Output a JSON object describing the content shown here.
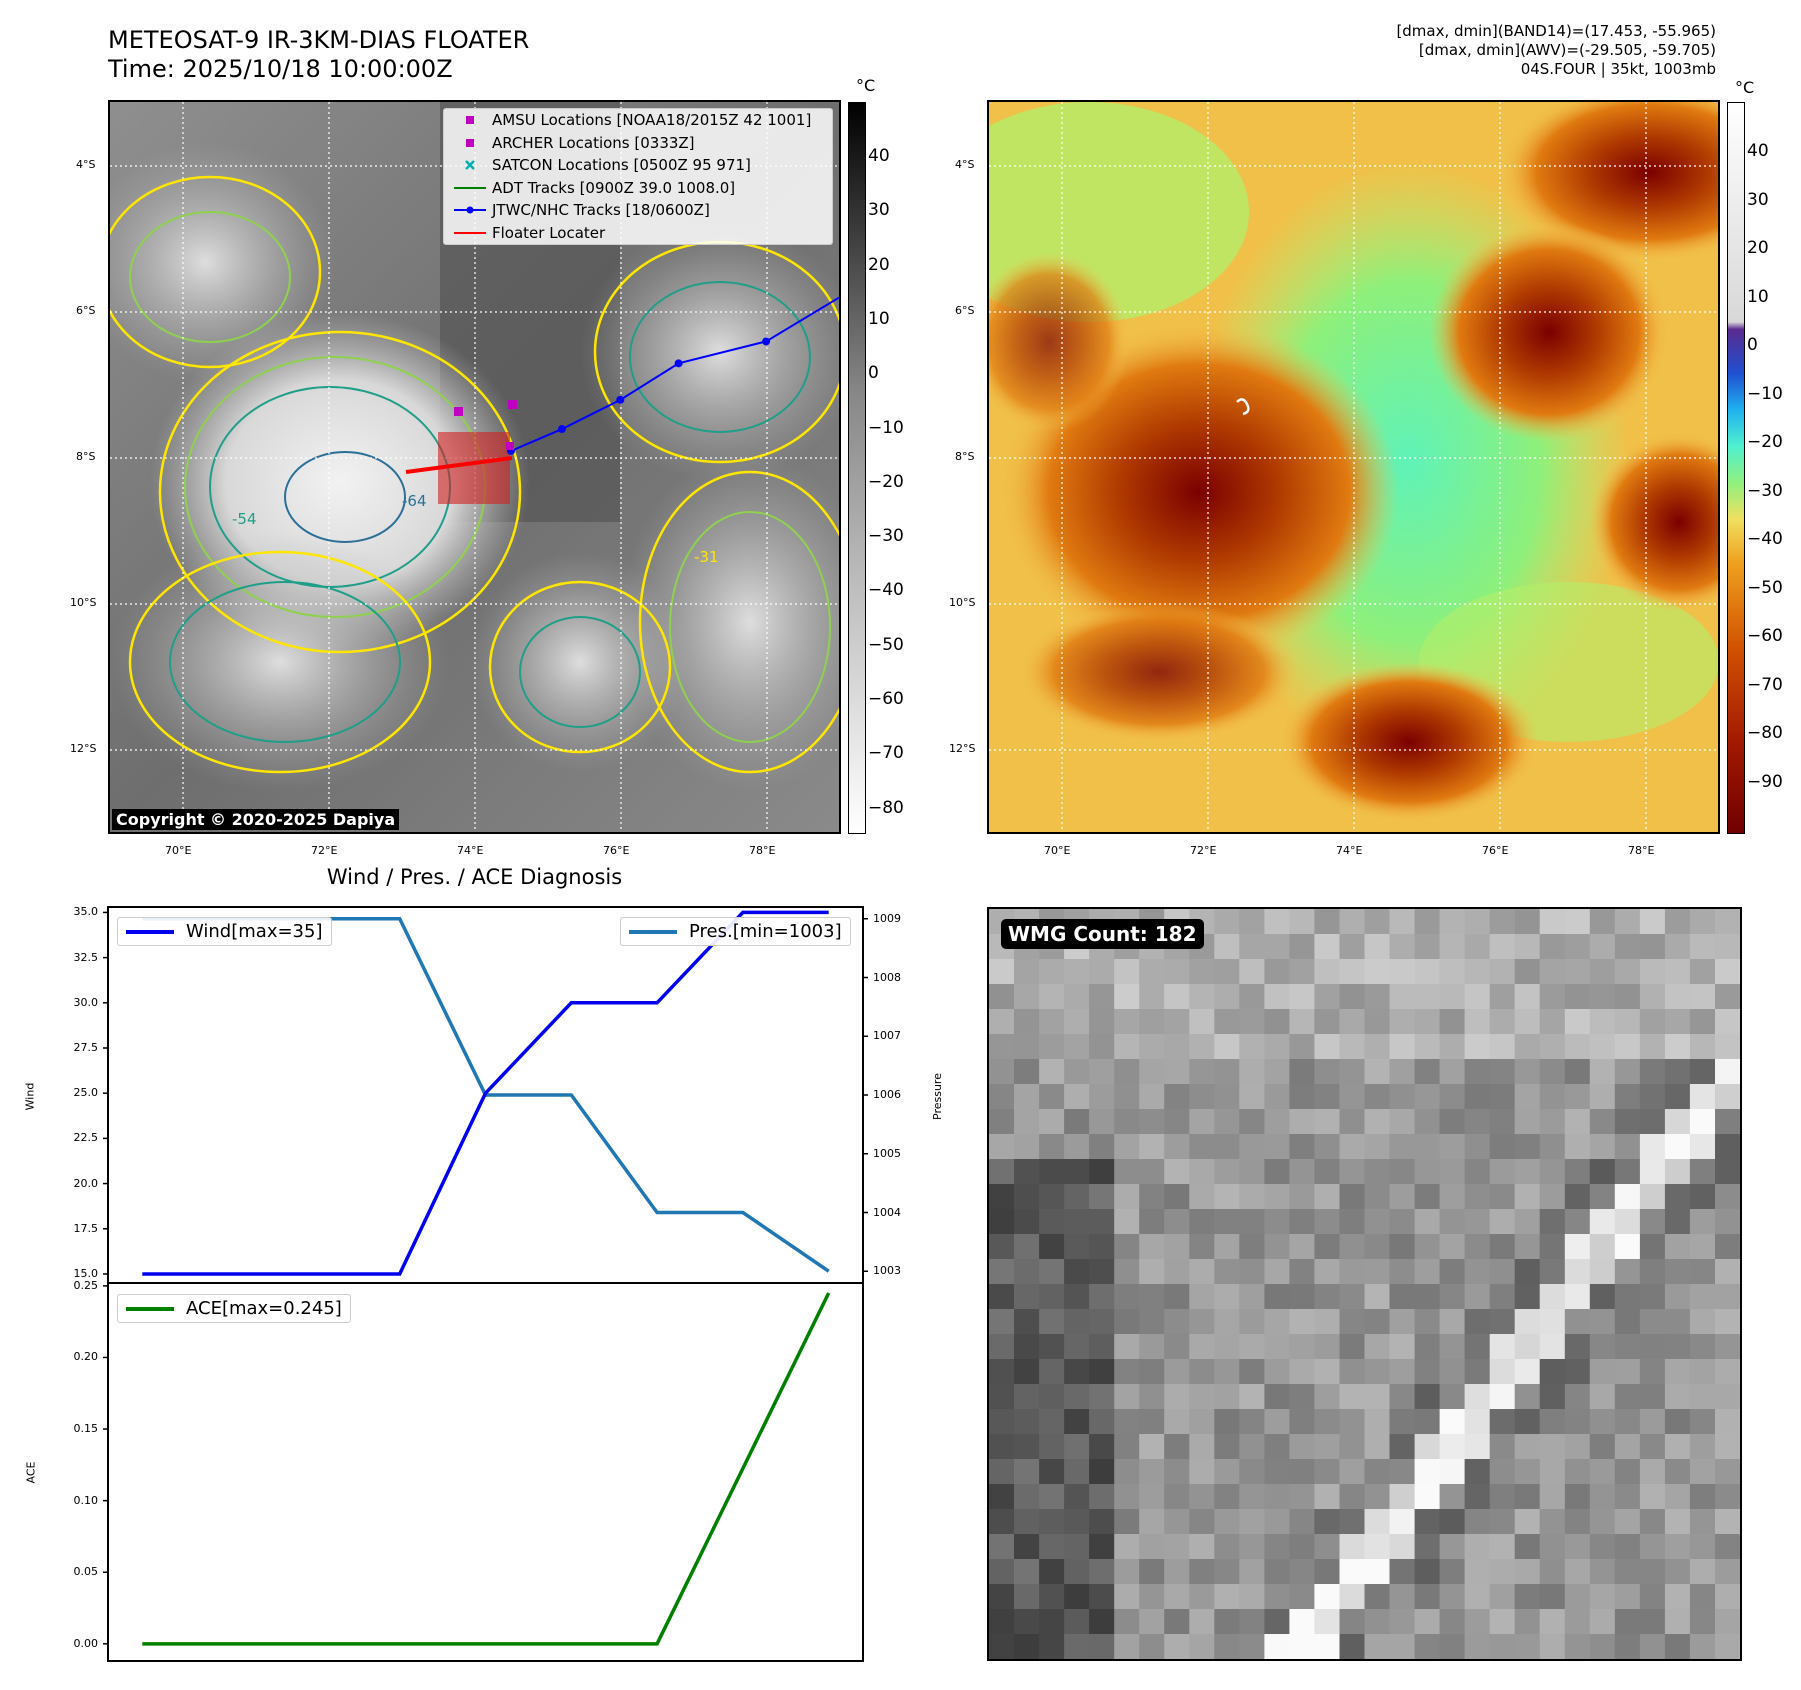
{
  "header": {
    "title_line1": "METEOSAT-9 IR-3KM-DIAS FLOATER",
    "title_line2": "Time: 2025/10/18 10:00:00Z",
    "stats_line1": "[dmax, dmin](BAND14)=(17.453, -55.965)",
    "stats_line2": "[dmax, dmin](AWV)=(-29.505, -59.705)",
    "stats_line3": "04S.FOUR | 35kt, 1003mb"
  },
  "ir_panel": {
    "lat_ticks": [
      "4°S",
      "6°S",
      "8°S",
      "10°S",
      "12°S"
    ],
    "lon_ticks": [
      "70°E",
      "72°E",
      "74°E",
      "76°E",
      "78°E"
    ],
    "colorbar_unit": "°C",
    "colorbar_ticks": [
      "40",
      "30",
      "20",
      "10",
      "0",
      "−10",
      "−20",
      "−30",
      "−40",
      "−50",
      "−60",
      "−70",
      "−80"
    ],
    "contour_labels": [
      "-31",
      "-54",
      "-64"
    ],
    "copyright": "Copyright © 2020-2025 Dapiya",
    "legend": [
      {
        "label": "AMSU Locations [NOAA18/2015Z 42 1001]",
        "color": "#c000c0",
        "marker": "square"
      },
      {
        "label": "ARCHER Locations [0333Z]",
        "color": "#c000c0",
        "marker": "square"
      },
      {
        "label": "SATCON Locations [0500Z 95 971]",
        "color": "#00b0b0",
        "marker": "x"
      },
      {
        "label": "ADT Tracks [0900Z 39.0 1008.0]",
        "color": "#008000",
        "marker": "line"
      },
      {
        "label": "JTWC/NHC Tracks [18/0600Z]",
        "color": "#0000ff",
        "marker": "dotline"
      },
      {
        "label": "Floater Locater",
        "color": "#ff0000",
        "marker": "line"
      }
    ],
    "jtwc_track": [
      {
        "lon": 74.5,
        "lat": -7.9
      },
      {
        "lon": 75.2,
        "lat": -7.6
      },
      {
        "lon": 76.0,
        "lat": -7.2
      },
      {
        "lon": 76.8,
        "lat": -6.7
      },
      {
        "lon": 78.0,
        "lat": -6.4
      },
      {
        "lon": 79.0,
        "lat": -5.8
      }
    ]
  },
  "awv_panel": {
    "lat_ticks": [
      "4°S",
      "6°S",
      "8°S",
      "10°S",
      "12°S"
    ],
    "lon_ticks": [
      "70°E",
      "72°E",
      "74°E",
      "76°E",
      "78°E"
    ],
    "colorbar_unit": "°C",
    "colorbar_ticks": [
      "40",
      "30",
      "20",
      "10",
      "0",
      "−10",
      "−20",
      "−30",
      "−40",
      "−50",
      "−60",
      "−70",
      "−80",
      "−90"
    ]
  },
  "diag": {
    "title": "Wind / Pres. / ACE Diagnosis",
    "wind_ylabel": "Wind",
    "pres_ylabel": "Pressure",
    "ace_ylabel": "ACE",
    "wind_legend": "Wind[max=35]",
    "pres_legend": "Pres.[min=1003]",
    "ace_legend": "ACE[max=0.245]",
    "wind_ticks": [
      "35.0",
      "32.5",
      "30.0",
      "27.5",
      "25.0",
      "22.5",
      "20.0",
      "17.5",
      "15.0"
    ],
    "pres_ticks": [
      "1009",
      "1008",
      "1007",
      "1006",
      "1005",
      "1004",
      "1003"
    ],
    "ace_ticks": [
      "0.25",
      "0.20",
      "0.15",
      "0.10",
      "0.05",
      "0.00"
    ],
    "colors": {
      "wind": "#0000ee",
      "pres": "#1f77b4",
      "ace": "#008000"
    }
  },
  "chart_data": [
    {
      "type": "line",
      "title": "Wind / Pres. / ACE Diagnosis",
      "x": [
        0,
        1,
        2,
        3,
        4,
        5,
        6,
        7,
        8
      ],
      "series": [
        {
          "name": "Wind[max=35]",
          "axis": "left",
          "values": [
            15,
            15,
            15,
            15,
            25,
            30,
            30,
            35,
            35
          ]
        },
        {
          "name": "Pres.[min=1003]",
          "axis": "right",
          "values": [
            1009,
            1009,
            1009,
            1009,
            1006,
            1006,
            1004,
            1004,
            1003
          ]
        }
      ],
      "ylabel": "Wind",
      "ylim": [
        14.5,
        35.3
      ],
      "y2label": "Pressure",
      "y2lim": [
        1002.8,
        1009.2
      ]
    },
    {
      "type": "line",
      "x": [
        0,
        1,
        2,
        3,
        4,
        5,
        6,
        7,
        8
      ],
      "series": [
        {
          "name": "ACE[max=0.245]",
          "values": [
            0,
            0,
            0,
            0,
            0,
            0,
            0,
            0.1225,
            0.245
          ]
        }
      ],
      "ylabel": "ACE",
      "ylim": [
        -0.012,
        0.252
      ]
    }
  ],
  "wmg_panel": {
    "badge": "WMG Count: 182"
  }
}
